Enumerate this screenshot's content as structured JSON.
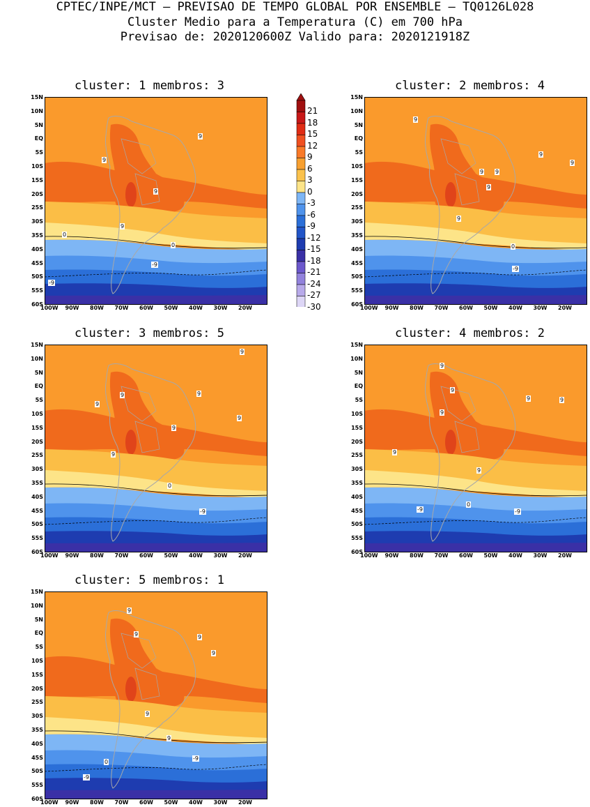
{
  "header": {
    "line1": "CPTEC/INPE/MCT – PREVISAO DE TEMPO GLOBAL POR ENSEMBLE – TQ0126L028",
    "line2": "Cluster Medio para a Temperatura (C) em 700 hPa",
    "line3": "Previsao de: 2020120600Z    Valido para: 2020121918Z"
  },
  "lat_ticks": [
    "15N",
    "10N",
    "5N",
    "EQ",
    "5S",
    "10S",
    "15S",
    "20S",
    "25S",
    "30S",
    "35S",
    "40S",
    "45S",
    "50S",
    "55S",
    "60S"
  ],
  "lon_ticks": [
    "100W",
    "90W",
    "80W",
    "70W",
    "60W",
    "50W",
    "40W",
    "30W",
    "20W"
  ],
  "panels": [
    {
      "title": "cluster: 1   membros: 3",
      "labels": [
        "9",
        "9",
        "9",
        "9",
        "0",
        "0",
        "-9",
        "-9"
      ]
    },
    {
      "title": "cluster: 2   membros: 4",
      "labels": [
        "9",
        "9",
        "9",
        "9",
        "9",
        "9",
        "9",
        "0",
        "-9"
      ]
    },
    {
      "title": "cluster: 3   membros: 5",
      "labels": [
        "9",
        "9",
        "9",
        "9",
        "9",
        "9",
        "9",
        "0",
        "-9"
      ]
    },
    {
      "title": "cluster: 4   membros: 2",
      "labels": [
        "9",
        "9",
        "9",
        "9",
        "9",
        "9",
        "9",
        "0",
        "-9",
        "-9"
      ]
    },
    {
      "title": "cluster: 5   membros: 1",
      "labels": [
        "9",
        "9",
        "9",
        "9",
        "9",
        "9",
        "0",
        "-9",
        "-9"
      ]
    }
  ],
  "legend": {
    "levels": [
      "21",
      "18",
      "15",
      "12",
      "9",
      "6",
      "3",
      "0",
      "-3",
      "-6",
      "-9",
      "-12",
      "-15",
      "-18",
      "-21",
      "-24",
      "-27",
      "-30"
    ],
    "colors": [
      "#a01010",
      "#c81818",
      "#e02c14",
      "#f05020",
      "#fa7a28",
      "#f8a030",
      "#fbc24c",
      "#fde488",
      "#7eb6f5",
      "#4f93ec",
      "#2b6fd8",
      "#2255c8",
      "#1e3cb0",
      "#3a30a6",
      "#6c58cc",
      "#9282dc",
      "#b8aaea",
      "#ddd6f6"
    ]
  }
}
